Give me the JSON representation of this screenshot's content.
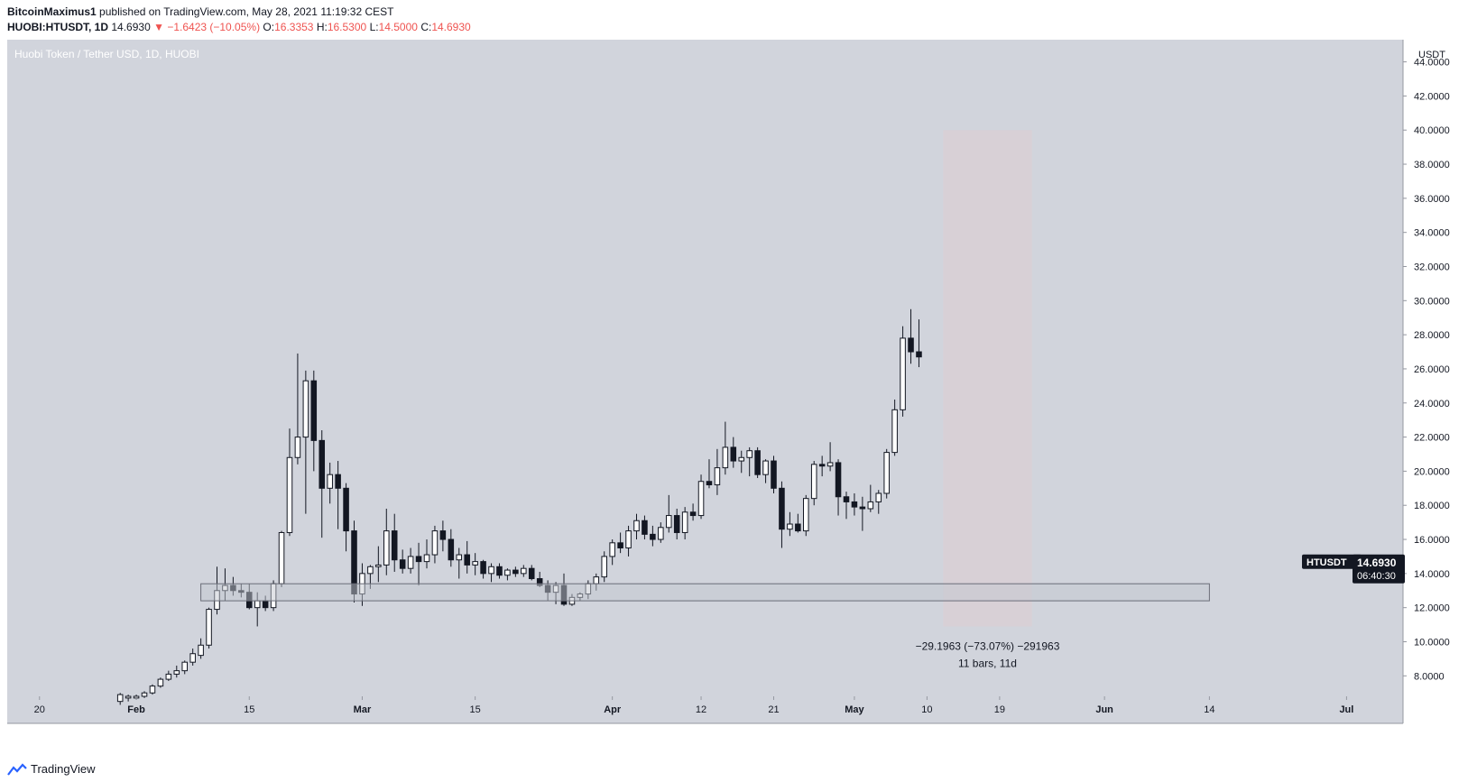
{
  "header": {
    "author": "BitcoinMaximus1",
    "published": "published on TradingView.com, May 28, 2021 11:19:32 CEST",
    "symbol": "HUOBI:HTUSDT, 1D",
    "last": "14.6930",
    "arrow": "▼",
    "change": "−1.6423 (−10.05%)",
    "o_label": "O:",
    "o_val": "16.3353",
    "h_label": "H:",
    "h_val": "16.5300",
    "l_label": "L:",
    "l_val": "14.5000",
    "c_label": "C:",
    "c_val": "14.6930"
  },
  "chart_title": "Huobi Token / Tether USD, 1D, HUOBI",
  "axis_currency": "USDT",
  "price_tag": {
    "symbol": "HTUSDT",
    "price": "14.6930",
    "countdown": "06:40:30"
  },
  "measure": {
    "line1": "−29.1963 (−73.07%) −291963",
    "line2": "11 bars, 11d"
  },
  "footer": {
    "brand": "TradingView"
  },
  "colors": {
    "background": "#d1d4dc",
    "up_fill": "#ffffff",
    "down_fill": "#131722",
    "zone": "#d8cfd5",
    "tag": "#131722"
  },
  "chart_data": {
    "type": "candlestick",
    "title": "Huobi Token / Tether USD, 1D, HUOBI",
    "ylabel": "USDT",
    "ylim": [
      6.8,
      45.3
    ],
    "y_ticks": [
      8,
      10,
      12,
      14,
      16,
      18,
      20,
      22,
      24,
      26,
      28,
      30,
      32,
      34,
      36,
      38,
      40,
      42,
      44
    ],
    "y_tick_labels": [
      "8.0000",
      "10.0000",
      "12.0000",
      "14.0000",
      "16.0000",
      "18.0000",
      "20.0000",
      "22.0000",
      "24.0000",
      "26.0000",
      "28.0000",
      "30.0000",
      "32.0000",
      "34.0000",
      "36.0000",
      "38.0000",
      "40.0000",
      "42.0000",
      "44.0000"
    ],
    "x_range": [
      "2021-01-16",
      "2021-07-08"
    ],
    "x_ticks": [
      {
        "date": "2021-01-20",
        "label": "20",
        "bold": false
      },
      {
        "date": "2021-02-01",
        "label": "Feb",
        "bold": true
      },
      {
        "date": "2021-02-15",
        "label": "15",
        "bold": false
      },
      {
        "date": "2021-03-01",
        "label": "Mar",
        "bold": true
      },
      {
        "date": "2021-03-15",
        "label": "15",
        "bold": false
      },
      {
        "date": "2021-04-01",
        "label": "Apr",
        "bold": true
      },
      {
        "date": "2021-04-12",
        "label": "12",
        "bold": false
      },
      {
        "date": "2021-04-21",
        "label": "21",
        "bold": false
      },
      {
        "date": "2021-05-01",
        "label": "May",
        "bold": true
      },
      {
        "date": "2021-05-10",
        "label": "10",
        "bold": false
      },
      {
        "date": "2021-05-19",
        "label": "19",
        "bold": false
      },
      {
        "date": "2021-06-01",
        "label": "Jun",
        "bold": true
      },
      {
        "date": "2021-06-14",
        "label": "14",
        "bold": false
      },
      {
        "date": "2021-07-01",
        "label": "Jul",
        "bold": true
      }
    ],
    "support_zone": {
      "from": "2021-02-09",
      "to": "2021-06-14",
      "low": 12.4,
      "high": 13.4
    },
    "highlight_range": {
      "from": "2021-05-12",
      "to": "2021-05-23",
      "low": 10.9,
      "high": 40.0,
      "change": -29.1963,
      "change_pct": -73.07,
      "bars": 11
    },
    "last_price": 14.693,
    "candles": [
      {
        "date": "2021-01-30",
        "o": 6.5,
        "h": 7.0,
        "l": 6.3,
        "c": 6.9
      },
      {
        "date": "2021-01-31",
        "o": 6.7,
        "h": 6.9,
        "l": 6.5,
        "c": 6.8
      },
      {
        "date": "2021-02-01",
        "o": 6.7,
        "h": 6.9,
        "l": 6.6,
        "c": 6.8
      },
      {
        "date": "2021-02-02",
        "o": 6.8,
        "h": 7.1,
        "l": 6.7,
        "c": 7.0
      },
      {
        "date": "2021-02-03",
        "o": 7.0,
        "h": 7.5,
        "l": 6.9,
        "c": 7.4
      },
      {
        "date": "2021-02-04",
        "o": 7.4,
        "h": 7.9,
        "l": 7.3,
        "c": 7.8
      },
      {
        "date": "2021-02-05",
        "o": 7.8,
        "h": 8.3,
        "l": 7.7,
        "c": 8.1
      },
      {
        "date": "2021-02-06",
        "o": 8.1,
        "h": 8.6,
        "l": 7.9,
        "c": 8.3
      },
      {
        "date": "2021-02-07",
        "o": 8.3,
        "h": 8.9,
        "l": 8.1,
        "c": 8.8
      },
      {
        "date": "2021-02-08",
        "o": 8.8,
        "h": 9.6,
        "l": 8.6,
        "c": 9.3
      },
      {
        "date": "2021-02-09",
        "o": 9.2,
        "h": 10.2,
        "l": 9.0,
        "c": 9.8
      },
      {
        "date": "2021-02-10",
        "o": 9.8,
        "h": 12.0,
        "l": 9.6,
        "c": 11.9
      },
      {
        "date": "2021-02-11",
        "o": 11.9,
        "h": 14.4,
        "l": 11.6,
        "c": 13.0
      },
      {
        "date": "2021-02-12",
        "o": 13.0,
        "h": 14.3,
        "l": 12.4,
        "c": 13.3
      },
      {
        "date": "2021-02-13",
        "o": 13.3,
        "h": 13.8,
        "l": 12.7,
        "c": 13.0
      },
      {
        "date": "2021-02-14",
        "o": 13.0,
        "h": 13.4,
        "l": 12.6,
        "c": 12.9
      },
      {
        "date": "2021-02-15",
        "o": 12.9,
        "h": 13.4,
        "l": 11.9,
        "c": 12.0
      },
      {
        "date": "2021-02-16",
        "o": 12.0,
        "h": 12.9,
        "l": 10.9,
        "c": 12.4
      },
      {
        "date": "2021-02-17",
        "o": 12.4,
        "h": 12.7,
        "l": 11.8,
        "c": 12.0
      },
      {
        "date": "2021-02-18",
        "o": 12.0,
        "h": 13.6,
        "l": 11.8,
        "c": 13.4
      },
      {
        "date": "2021-02-19",
        "o": 13.4,
        "h": 16.5,
        "l": 13.2,
        "c": 16.4
      },
      {
        "date": "2021-02-20",
        "o": 16.4,
        "h": 22.5,
        "l": 16.2,
        "c": 20.8
      },
      {
        "date": "2021-02-21",
        "o": 20.8,
        "h": 26.9,
        "l": 20.4,
        "c": 22.0
      },
      {
        "date": "2021-02-22",
        "o": 22.0,
        "h": 25.9,
        "l": 17.5,
        "c": 25.3
      },
      {
        "date": "2021-02-23",
        "o": 25.3,
        "h": 25.9,
        "l": 20.0,
        "c": 21.8
      },
      {
        "date": "2021-02-24",
        "o": 21.8,
        "h": 22.4,
        "l": 16.1,
        "c": 19.0
      },
      {
        "date": "2021-02-25",
        "o": 19.0,
        "h": 20.5,
        "l": 18.1,
        "c": 19.8
      },
      {
        "date": "2021-02-26",
        "o": 19.8,
        "h": 20.6,
        "l": 16.6,
        "c": 19.0
      },
      {
        "date": "2021-02-27",
        "o": 19.0,
        "h": 19.3,
        "l": 15.3,
        "c": 16.5
      },
      {
        "date": "2021-02-28",
        "o": 16.5,
        "h": 17.1,
        "l": 12.3,
        "c": 12.8
      },
      {
        "date": "2021-03-01",
        "o": 12.8,
        "h": 14.6,
        "l": 12.1,
        "c": 14.0
      },
      {
        "date": "2021-03-02",
        "o": 14.0,
        "h": 14.5,
        "l": 13.1,
        "c": 14.4
      },
      {
        "date": "2021-03-03",
        "o": 14.4,
        "h": 15.6,
        "l": 13.5,
        "c": 14.5
      },
      {
        "date": "2021-03-04",
        "o": 14.5,
        "h": 17.8,
        "l": 13.9,
        "c": 16.5
      },
      {
        "date": "2021-03-05",
        "o": 16.5,
        "h": 17.5,
        "l": 14.1,
        "c": 14.8
      },
      {
        "date": "2021-03-06",
        "o": 14.8,
        "h": 15.4,
        "l": 14.0,
        "c": 14.3
      },
      {
        "date": "2021-03-07",
        "o": 14.3,
        "h": 15.5,
        "l": 14.0,
        "c": 15.0
      },
      {
        "date": "2021-03-08",
        "o": 15.0,
        "h": 15.8,
        "l": 13.3,
        "c": 14.7
      },
      {
        "date": "2021-03-09",
        "o": 14.7,
        "h": 16.0,
        "l": 14.3,
        "c": 15.1
      },
      {
        "date": "2021-03-10",
        "o": 15.1,
        "h": 16.8,
        "l": 14.6,
        "c": 16.5
      },
      {
        "date": "2021-03-11",
        "o": 16.5,
        "h": 17.1,
        "l": 15.3,
        "c": 16.0
      },
      {
        "date": "2021-03-12",
        "o": 16.0,
        "h": 16.6,
        "l": 14.4,
        "c": 14.8
      },
      {
        "date": "2021-03-13",
        "o": 14.8,
        "h": 15.5,
        "l": 13.7,
        "c": 15.1
      },
      {
        "date": "2021-03-14",
        "o": 15.1,
        "h": 15.9,
        "l": 14.0,
        "c": 14.5
      },
      {
        "date": "2021-03-15",
        "o": 14.5,
        "h": 15.2,
        "l": 13.9,
        "c": 14.7
      },
      {
        "date": "2021-03-16",
        "o": 14.7,
        "h": 14.8,
        "l": 13.7,
        "c": 14.0
      },
      {
        "date": "2021-03-17",
        "o": 14.0,
        "h": 14.6,
        "l": 13.5,
        "c": 14.4
      },
      {
        "date": "2021-03-18",
        "o": 14.4,
        "h": 14.6,
        "l": 13.7,
        "c": 13.9
      },
      {
        "date": "2021-03-19",
        "o": 13.9,
        "h": 14.3,
        "l": 13.6,
        "c": 14.2
      },
      {
        "date": "2021-03-20",
        "o": 14.2,
        "h": 14.4,
        "l": 13.8,
        "c": 14.0
      },
      {
        "date": "2021-03-21",
        "o": 14.0,
        "h": 14.5,
        "l": 13.8,
        "c": 14.3
      },
      {
        "date": "2021-03-22",
        "o": 14.3,
        "h": 14.5,
        "l": 13.6,
        "c": 13.7
      },
      {
        "date": "2021-03-23",
        "o": 13.7,
        "h": 14.1,
        "l": 13.2,
        "c": 13.3
      },
      {
        "date": "2021-03-24",
        "o": 13.3,
        "h": 13.6,
        "l": 12.4,
        "c": 12.9
      },
      {
        "date": "2021-03-25",
        "o": 12.9,
        "h": 13.5,
        "l": 12.2,
        "c": 13.3
      },
      {
        "date": "2021-03-26",
        "o": 13.3,
        "h": 14.0,
        "l": 12.1,
        "c": 12.2
      },
      {
        "date": "2021-03-27",
        "o": 12.2,
        "h": 12.8,
        "l": 12.1,
        "c": 12.6
      },
      {
        "date": "2021-03-28",
        "o": 12.6,
        "h": 12.9,
        "l": 12.4,
        "c": 12.8
      },
      {
        "date": "2021-03-29",
        "o": 12.8,
        "h": 13.6,
        "l": 12.5,
        "c": 13.4
      },
      {
        "date": "2021-03-30",
        "o": 13.4,
        "h": 14.0,
        "l": 13.0,
        "c": 13.8
      },
      {
        "date": "2021-03-31",
        "o": 13.8,
        "h": 15.3,
        "l": 13.5,
        "c": 15.0
      },
      {
        "date": "2021-04-01",
        "o": 15.0,
        "h": 16.0,
        "l": 14.5,
        "c": 15.8
      },
      {
        "date": "2021-04-02",
        "o": 15.8,
        "h": 16.4,
        "l": 15.2,
        "c": 15.5
      },
      {
        "date": "2021-04-03",
        "o": 15.5,
        "h": 16.8,
        "l": 15.0,
        "c": 16.5
      },
      {
        "date": "2021-04-04",
        "o": 16.5,
        "h": 17.5,
        "l": 16.0,
        "c": 17.1
      },
      {
        "date": "2021-04-05",
        "o": 17.1,
        "h": 17.4,
        "l": 16.0,
        "c": 16.3
      },
      {
        "date": "2021-04-06",
        "o": 16.3,
        "h": 16.8,
        "l": 15.6,
        "c": 16.0
      },
      {
        "date": "2021-04-07",
        "o": 16.0,
        "h": 17.0,
        "l": 15.8,
        "c": 16.7
      },
      {
        "date": "2021-04-08",
        "o": 16.7,
        "h": 18.6,
        "l": 16.4,
        "c": 17.4
      },
      {
        "date": "2021-04-09",
        "o": 17.4,
        "h": 17.8,
        "l": 16.0,
        "c": 16.4
      },
      {
        "date": "2021-04-10",
        "o": 16.4,
        "h": 17.9,
        "l": 16.0,
        "c": 17.6
      },
      {
        "date": "2021-04-11",
        "o": 17.6,
        "h": 18.1,
        "l": 17.1,
        "c": 17.4
      },
      {
        "date": "2021-04-12",
        "o": 17.4,
        "h": 19.8,
        "l": 17.2,
        "c": 19.4
      },
      {
        "date": "2021-04-13",
        "o": 19.4,
        "h": 20.7,
        "l": 19.0,
        "c": 19.2
      },
      {
        "date": "2021-04-14",
        "o": 19.2,
        "h": 21.3,
        "l": 18.6,
        "c": 20.2
      },
      {
        "date": "2021-04-15",
        "o": 20.2,
        "h": 22.9,
        "l": 19.8,
        "c": 21.4
      },
      {
        "date": "2021-04-16",
        "o": 21.4,
        "h": 22.0,
        "l": 20.2,
        "c": 20.6
      },
      {
        "date": "2021-04-17",
        "o": 20.6,
        "h": 21.2,
        "l": 19.9,
        "c": 20.8
      },
      {
        "date": "2021-04-18",
        "o": 20.8,
        "h": 21.4,
        "l": 19.7,
        "c": 21.2
      },
      {
        "date": "2021-04-19",
        "o": 21.2,
        "h": 21.4,
        "l": 19.6,
        "c": 19.8
      },
      {
        "date": "2021-04-20",
        "o": 19.8,
        "h": 20.7,
        "l": 19.3,
        "c": 20.6
      },
      {
        "date": "2021-04-21",
        "o": 20.6,
        "h": 20.9,
        "l": 18.7,
        "c": 19.0
      },
      {
        "date": "2021-04-22",
        "o": 19.0,
        "h": 19.4,
        "l": 15.5,
        "c": 16.6
      },
      {
        "date": "2021-04-23",
        "o": 16.6,
        "h": 17.6,
        "l": 16.2,
        "c": 16.9
      },
      {
        "date": "2021-04-24",
        "o": 16.9,
        "h": 17.5,
        "l": 16.4,
        "c": 16.5
      },
      {
        "date": "2021-04-25",
        "o": 16.5,
        "h": 18.6,
        "l": 16.2,
        "c": 18.4
      },
      {
        "date": "2021-04-26",
        "o": 18.4,
        "h": 20.6,
        "l": 18.0,
        "c": 20.4
      },
      {
        "date": "2021-04-27",
        "o": 20.4,
        "h": 20.9,
        "l": 19.7,
        "c": 20.3
      },
      {
        "date": "2021-04-28",
        "o": 20.3,
        "h": 21.7,
        "l": 20.0,
        "c": 20.5
      },
      {
        "date": "2021-04-29",
        "o": 20.5,
        "h": 20.7,
        "l": 17.4,
        "c": 18.5
      },
      {
        "date": "2021-04-30",
        "o": 18.5,
        "h": 18.8,
        "l": 17.2,
        "c": 18.2
      },
      {
        "date": "2021-05-01",
        "o": 18.2,
        "h": 18.7,
        "l": 17.4,
        "c": 17.9
      },
      {
        "date": "2021-05-02",
        "o": 17.9,
        "h": 18.5,
        "l": 16.5,
        "c": 17.8
      },
      {
        "date": "2021-05-03",
        "o": 17.8,
        "h": 19.2,
        "l": 17.6,
        "c": 18.2
      },
      {
        "date": "2021-05-04",
        "o": 18.2,
        "h": 18.9,
        "l": 17.5,
        "c": 18.7
      },
      {
        "date": "2021-05-05",
        "o": 18.7,
        "h": 21.3,
        "l": 18.4,
        "c": 21.1
      },
      {
        "date": "2021-05-06",
        "o": 21.1,
        "h": 24.2,
        "l": 20.9,
        "c": 23.6
      },
      {
        "date": "2021-05-07",
        "o": 23.6,
        "h": 28.5,
        "l": 23.2,
        "c": 27.8
      },
      {
        "date": "2021-05-08",
        "o": 27.8,
        "h": 29.5,
        "l": 26.3,
        "c": 27.0
      },
      {
        "date": "2021-05-09",
        "o": 27.0,
        "h": 28.9,
        "l": 26.1,
        "c": 26.7
      }
    ]
  }
}
